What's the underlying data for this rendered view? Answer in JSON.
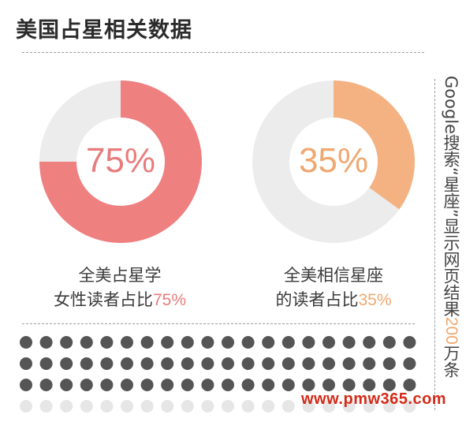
{
  "title": "美国占星相关数据",
  "chart_data": [
    {
      "type": "pie",
      "variant": "donut",
      "label": "75%",
      "caption_line1": "全美占星学",
      "caption_line2_text": "女性读者占比",
      "caption_line2_value": "75%",
      "slices": [
        {
          "value": 75,
          "color": "#ef8080"
        },
        {
          "value": 25,
          "color": "#ececec"
        }
      ]
    },
    {
      "type": "pie",
      "variant": "donut",
      "label": "35%",
      "caption_line1": "全美相信星座",
      "caption_line2_text": "的读者占比",
      "caption_line2_value": "35%",
      "slices": [
        {
          "value": 35,
          "color": "#f4b182"
        },
        {
          "value": 65,
          "color": "#ececec"
        }
      ]
    }
  ],
  "dot_grid": {
    "rows": 4,
    "cols": 20,
    "highlighted_fraction": 0.75,
    "highlight_color": "#555555",
    "base_color": "#e6e6e6"
  },
  "side_note": {
    "prefix": "Google搜索“星座”显示网页结果",
    "number": "200",
    "suffix": "万条",
    "accent_color": "#efa870"
  },
  "watermark": "www.pmw365.com"
}
